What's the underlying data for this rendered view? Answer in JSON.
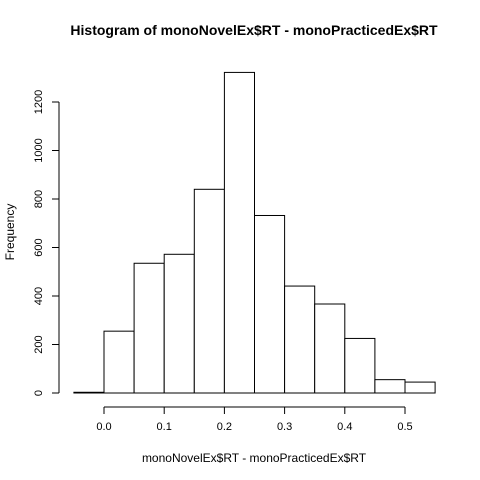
{
  "chart_data": {
    "type": "bar",
    "title": "Histogram of monoNovelEx$RT - monoPracticedEx$RT",
    "xlabel": "monoNovelEx$RT - monoPracticedEx$RT",
    "ylabel": "Frequency",
    "bins": [
      {
        "from": -0.05,
        "to": 0.0,
        "count": 3
      },
      {
        "from": 0.0,
        "to": 0.05,
        "count": 255
      },
      {
        "from": 0.05,
        "to": 0.1,
        "count": 535
      },
      {
        "from": 0.1,
        "to": 0.15,
        "count": 572
      },
      {
        "from": 0.15,
        "to": 0.2,
        "count": 840
      },
      {
        "from": 0.2,
        "to": 0.25,
        "count": 1322
      },
      {
        "from": 0.25,
        "to": 0.3,
        "count": 732
      },
      {
        "from": 0.3,
        "to": 0.35,
        "count": 441
      },
      {
        "from": 0.35,
        "to": 0.4,
        "count": 367
      },
      {
        "from": 0.4,
        "to": 0.45,
        "count": 225
      },
      {
        "from": 0.45,
        "to": 0.5,
        "count": 55
      },
      {
        "from": 0.5,
        "to": 0.55,
        "count": 45
      }
    ],
    "xlim": [
      -0.05,
      0.55
    ],
    "ylim": [
      0,
      1400
    ],
    "xticks": [
      0.0,
      0.1,
      0.2,
      0.3,
      0.4,
      0.5
    ],
    "xtick_labels": [
      "0.0",
      "0.1",
      "0.2",
      "0.3",
      "0.4",
      "0.5"
    ],
    "yticks": [
      0,
      200,
      400,
      600,
      800,
      1000,
      1200
    ],
    "ytick_labels": [
      "0",
      "200",
      "400",
      "600",
      "800",
      "1000",
      "1200"
    ],
    "grid": false,
    "bar_fill": "#ffffff",
    "bar_stroke": "#000000"
  }
}
